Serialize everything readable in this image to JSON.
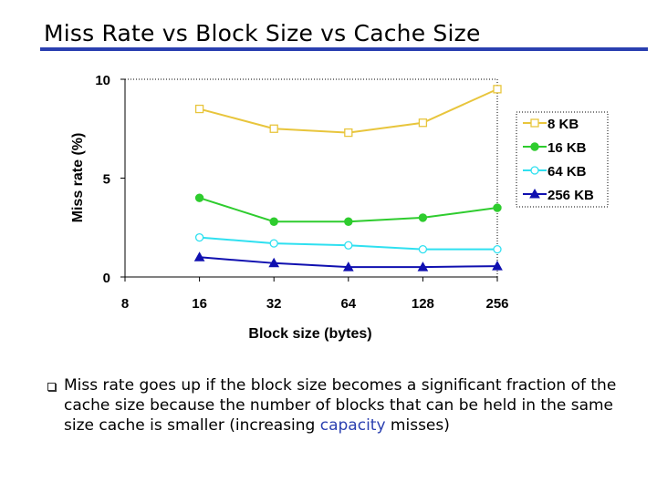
{
  "slide": {
    "title": "Miss Rate vs Block Size vs Cache Size",
    "accent_color": "#2a3fb0",
    "bullet": {
      "before": "Miss rate goes up if the block size becomes a significant fraction of the cache size because the number of blocks that can be held in the same size cache is smaller (increasing ",
      "highlight": "capacity",
      "after": " misses)"
    }
  },
  "chart_data": {
    "type": "line",
    "categories": [
      "8",
      "16",
      "32",
      "64",
      "128",
      "256"
    ],
    "xlabel": "Block size (bytes)",
    "ylabel": "Miss rate (%)",
    "ylim": [
      0,
      10
    ],
    "yticks": [
      "0",
      "5",
      "10"
    ],
    "legend_position": "right",
    "series": [
      {
        "name": "8 KB",
        "color": "#e8c53c",
        "marker": "open-square",
        "values": [
          null,
          8.5,
          7.5,
          7.3,
          7.8,
          9.5
        ]
      },
      {
        "name": "16 KB",
        "color": "#2ecc2e",
        "marker": "filled-circle",
        "values": [
          null,
          4.0,
          2.8,
          2.8,
          3.0,
          3.5
        ]
      },
      {
        "name": "64 KB",
        "color": "#2fe0f0",
        "marker": "open-circle",
        "values": [
          null,
          2.0,
          1.7,
          1.6,
          1.4,
          1.4
        ]
      },
      {
        "name": "256 KB",
        "color": "#1010b0",
        "marker": "filled-triangle",
        "values": [
          null,
          1.0,
          0.7,
          0.5,
          0.5,
          0.55
        ]
      }
    ]
  }
}
